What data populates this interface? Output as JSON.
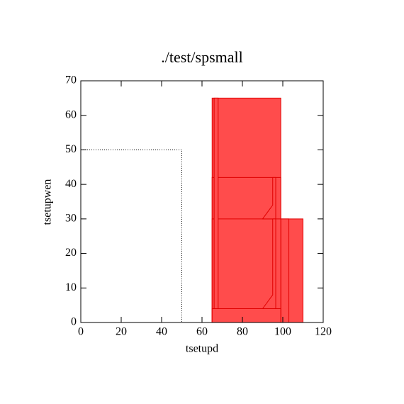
{
  "chart_data": {
    "type": "polygon",
    "title": "./test/spsmall",
    "x_label": "tsetupd",
    "y_label": "tsetupwen",
    "xlim": [
      0,
      120
    ],
    "ylim": [
      0,
      70
    ],
    "xticks": [
      0,
      20,
      40,
      60,
      80,
      100,
      120
    ],
    "yticks": [
      0,
      10,
      20,
      30,
      40,
      50,
      60,
      70
    ],
    "fill_color": "#ff4c4c",
    "stroke_color": "#e00000",
    "line_color": "#000000",
    "polygons": [
      {
        "x": [
          65,
          99,
          99,
          65
        ],
        "y": [
          0,
          0,
          65,
          65
        ]
      },
      {
        "x": [
          99,
          110,
          110,
          99
        ],
        "y": [
          0,
          0,
          30,
          30
        ]
      },
      {
        "x": [
          99,
          103,
          103,
          99
        ],
        "y": [
          0,
          0,
          30,
          30
        ]
      },
      {
        "x": [
          65,
          99,
          99,
          65
        ],
        "y": [
          0,
          0,
          42,
          42
        ]
      },
      {
        "x": [
          65,
          99,
          99,
          65
        ],
        "y": [
          0,
          0,
          30,
          30
        ]
      },
      {
        "x": [
          66,
          68,
          68,
          66
        ],
        "y": [
          0,
          0,
          65,
          65
        ]
      },
      {
        "x": [
          65,
          99,
          99,
          65
        ],
        "y": [
          0,
          0,
          4,
          4
        ]
      },
      {
        "x": [
          90,
          95,
          95,
          96.5,
          96.5
        ],
        "y": [
          30,
          34,
          42,
          42,
          30
        ]
      },
      {
        "x": [
          90,
          95,
          95,
          96.5,
          96.5
        ],
        "y": [
          4,
          8,
          30,
          30,
          4
        ]
      }
    ],
    "lines": [
      {
        "x": [
          0,
          50,
          50
        ],
        "y": [
          50,
          50,
          0
        ],
        "dash": true
      }
    ]
  }
}
